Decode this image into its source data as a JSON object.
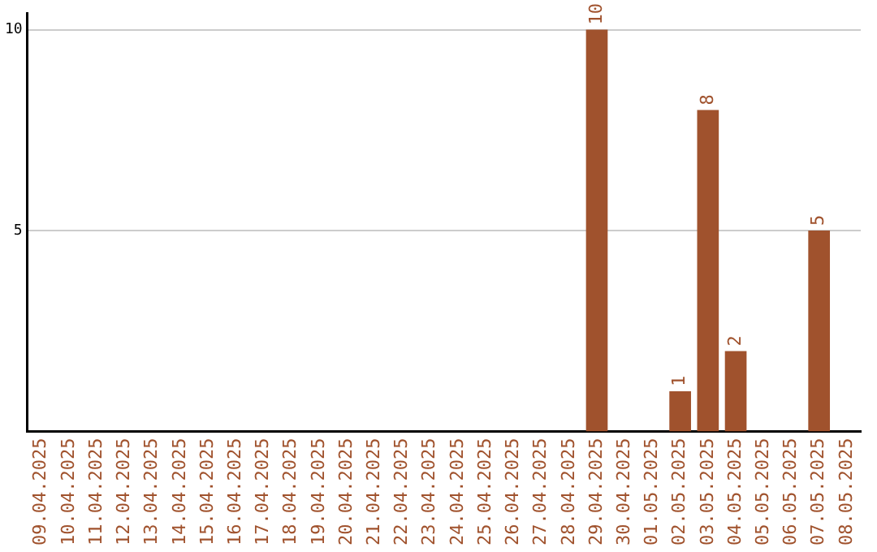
{
  "chart_data": {
    "type": "bar",
    "categories": [
      "09.04.2025",
      "10.04.2025",
      "11.04.2025",
      "12.04.2025",
      "13.04.2025",
      "14.04.2025",
      "15.04.2025",
      "16.04.2025",
      "17.04.2025",
      "18.04.2025",
      "19.04.2025",
      "20.04.2025",
      "21.04.2025",
      "22.04.2025",
      "23.04.2025",
      "24.04.2025",
      "25.04.2025",
      "26.04.2025",
      "27.04.2025",
      "28.04.2025",
      "29.04.2025",
      "30.04.2025",
      "01.05.2025",
      "02.05.2025",
      "03.05.2025",
      "04.05.2025",
      "05.05.2025",
      "06.05.2025",
      "07.05.2025",
      "08.05.2025"
    ],
    "values": [
      0,
      0,
      0,
      0,
      0,
      0,
      0,
      0,
      0,
      0,
      0,
      0,
      0,
      0,
      0,
      0,
      0,
      0,
      0,
      0,
      10,
      0,
      0,
      1,
      8,
      2,
      0,
      0,
      5,
      0
    ],
    "value_labels": [
      null,
      null,
      null,
      null,
      null,
      null,
      null,
      null,
      null,
      null,
      null,
      null,
      null,
      null,
      null,
      null,
      null,
      null,
      null,
      null,
      "10",
      null,
      null,
      "1",
      "8",
      "2",
      null,
      null,
      "5",
      null
    ],
    "color": "#a0522d",
    "ylim": [
      0,
      10.4
    ],
    "yticks": [
      5,
      10
    ],
    "grid": "y",
    "legend": false
  }
}
